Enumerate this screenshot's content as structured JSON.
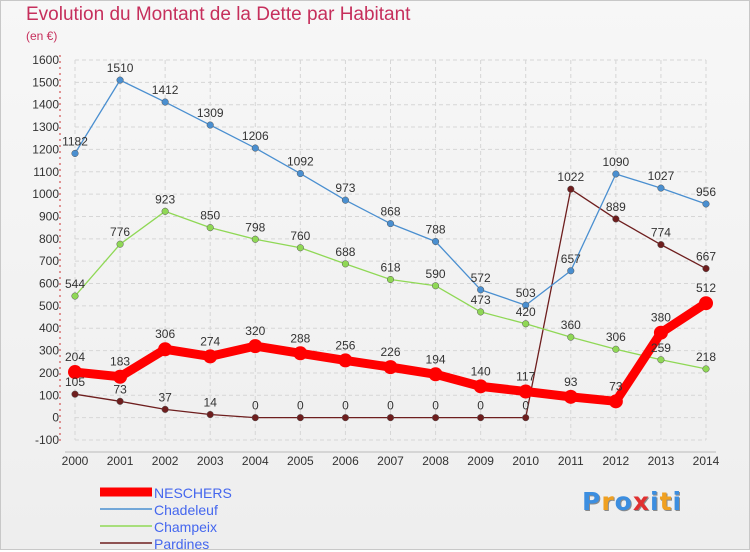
{
  "chart_data": {
    "type": "line",
    "title": "Evolution du Montant de la Dette par Habitant",
    "subtitle": "(en €)",
    "x": [
      "2000",
      "2001",
      "2002",
      "2003",
      "2004",
      "2005",
      "2006",
      "2007",
      "2008",
      "2009",
      "2010",
      "2011",
      "2012",
      "2013",
      "2014"
    ],
    "ylim": [
      -100,
      1600
    ],
    "y_ticks": [
      "-100",
      "0",
      "100",
      "200",
      "300",
      "400",
      "500",
      "600",
      "700",
      "800",
      "900",
      "1000",
      "1100",
      "1200",
      "1300",
      "1400",
      "1500",
      "1600"
    ],
    "grid": true,
    "legend_position": "bottom-left",
    "series": [
      {
        "name": "NESCHERS",
        "color": "#ff0000",
        "emphasis": true,
        "values": [
          204,
          183,
          306,
          274,
          320,
          288,
          256,
          226,
          194,
          140,
          117,
          93,
          73,
          380,
          512
        ],
        "labels": [
          "204",
          "183",
          "306",
          "274",
          "320",
          "288",
          "256",
          "226",
          "194",
          "140",
          "117",
          "93",
          "73",
          "380",
          "512"
        ]
      },
      {
        "name": "Chadeleuf",
        "color": "#4a8fd0",
        "values": [
          1182,
          1510,
          1412,
          1309,
          1206,
          1092,
          973,
          868,
          788,
          572,
          503,
          657,
          1090,
          1027,
          956
        ],
        "labels": [
          "1182",
          "1510",
          "1412",
          "1309",
          "1206",
          "1092",
          "973",
          "868",
          "788",
          "572",
          "503",
          "657",
          "1090",
          "1027",
          "956"
        ]
      },
      {
        "name": "Champeix",
        "color": "#8fd855",
        "values": [
          544,
          776,
          923,
          850,
          798,
          760,
          688,
          618,
          590,
          473,
          420,
          360,
          306,
          259,
          218
        ],
        "labels": [
          "544",
          "776",
          "923",
          "850",
          "798",
          "760",
          "688",
          "618",
          "590",
          "473",
          "420",
          "360",
          "306",
          "259",
          "218"
        ]
      },
      {
        "name": "Pardines",
        "color": "#6e1e1e",
        "values": [
          105,
          73,
          37,
          14,
          0,
          0,
          0,
          0,
          0,
          0,
          0,
          1022,
          889,
          774,
          667
        ],
        "labels": [
          "105",
          "73",
          "37",
          "14",
          "0",
          "0",
          "0",
          "0",
          "0",
          "0",
          "0",
          "1022",
          "889",
          "774",
          "667"
        ]
      }
    ]
  },
  "logo": {
    "text": "Proxiti",
    "colors": [
      "#3c8ee0",
      "#f0a020",
      "#3c8ee0",
      "#e03030",
      "#3c8ee0",
      "#f0a020",
      "#3c8ee0"
    ]
  }
}
